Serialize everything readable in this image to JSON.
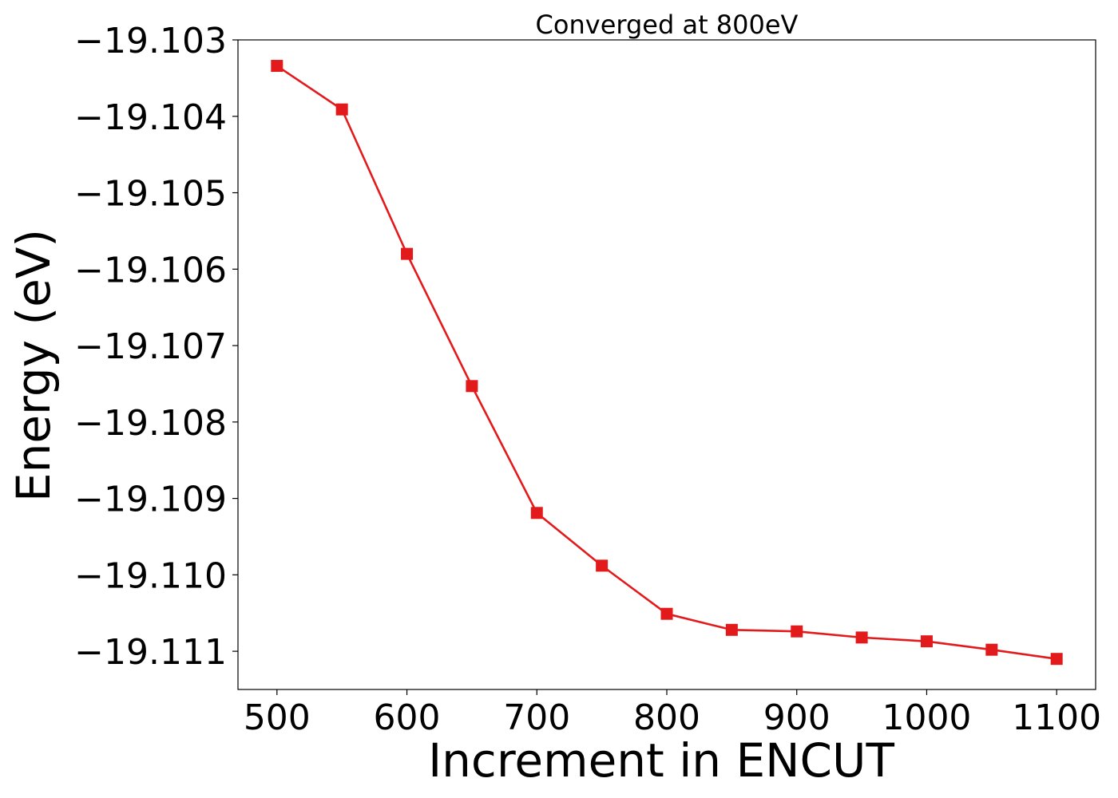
{
  "chart_data": {
    "type": "line",
    "title": "Converged at 800eV",
    "xlabel": "Increment in ENCUT",
    "ylabel": "Energy (eV)",
    "xlim": [
      470,
      1130
    ],
    "ylim": [
      -19.1115,
      -19.103
    ],
    "xticks": [
      500,
      600,
      700,
      800,
      900,
      1000,
      1100
    ],
    "xtick_labels": [
      "500",
      "600",
      "700",
      "800",
      "900",
      "1000",
      "1100"
    ],
    "yticks": [
      -19.103,
      -19.104,
      -19.105,
      -19.106,
      -19.107,
      -19.108,
      -19.109,
      -19.11,
      -19.111
    ],
    "ytick_labels": [
      "−19.103",
      "−19.104",
      "−19.105",
      "−19.106",
      "−19.107",
      "−19.108",
      "−19.109",
      "−19.110",
      "−19.111"
    ],
    "grid": false,
    "series": [
      {
        "color": "#e31a1c",
        "marker": "square",
        "x": [
          500,
          550,
          600,
          650,
          700,
          750,
          800,
          850,
          900,
          950,
          1000,
          1050,
          1100
        ],
        "y": [
          -19.10334,
          -19.10391,
          -19.1058,
          -19.10753,
          -19.10919,
          -19.10988,
          -19.11051,
          -19.11072,
          -19.11074,
          -19.11082,
          -19.11087,
          -19.11098,
          -19.1111
        ]
      }
    ]
  }
}
